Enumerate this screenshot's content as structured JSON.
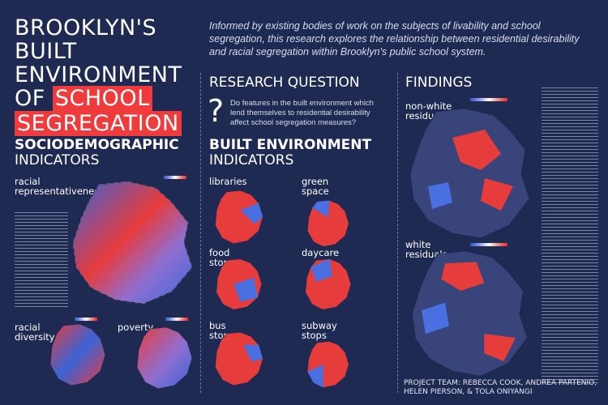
{
  "title": {
    "line1": "BROOKLYN'S BUILT",
    "line2": "ENVIRONMENT",
    "line3_prefix": "OF",
    "line3_tag": "SCHOOL",
    "line4_tag": "SEGREGATION"
  },
  "intro": "Informed by existing bodies of work on the subjects of livability and school segregation, this research explores the relationship between residential desirability and racial segregation within Brooklyn's public school system.",
  "research_question": {
    "heading": "RESEARCH QUESTION",
    "question": "Do features in the built environment which lend themselves to residential desirability affect school segregation measures?"
  },
  "sociodemographic": {
    "heading_bold": "SOCIODEMOGRAPHIC",
    "heading_light": "INDICATORS",
    "maps": [
      {
        "label": "racial representativeness"
      },
      {
        "label": "racial diversity"
      },
      {
        "label": "poverty"
      }
    ]
  },
  "built_environment": {
    "heading_bold": "BUILT ENVIRONMENT",
    "heading_light": "INDICATORS",
    "maps": [
      {
        "label": "libraries"
      },
      {
        "label": "green space"
      },
      {
        "label": "food stores"
      },
      {
        "label": "daycare"
      },
      {
        "label": "bus stops"
      },
      {
        "label": "subway stops"
      }
    ]
  },
  "findings": {
    "heading": "FINDINGS",
    "maps": [
      {
        "label": "non-white residuals"
      },
      {
        "label": "white residuals"
      }
    ]
  },
  "project_team": {
    "label": "PROJECT TEAM:",
    "names": "REBECCA COOK, ANDREA PARTENIO, HELEN PIERSON, & TOLA ONIYANGI"
  },
  "colors": {
    "background": "#1f2a52",
    "accent_red": "#ef3b3b",
    "accent_blue": "#4a6fe0"
  }
}
